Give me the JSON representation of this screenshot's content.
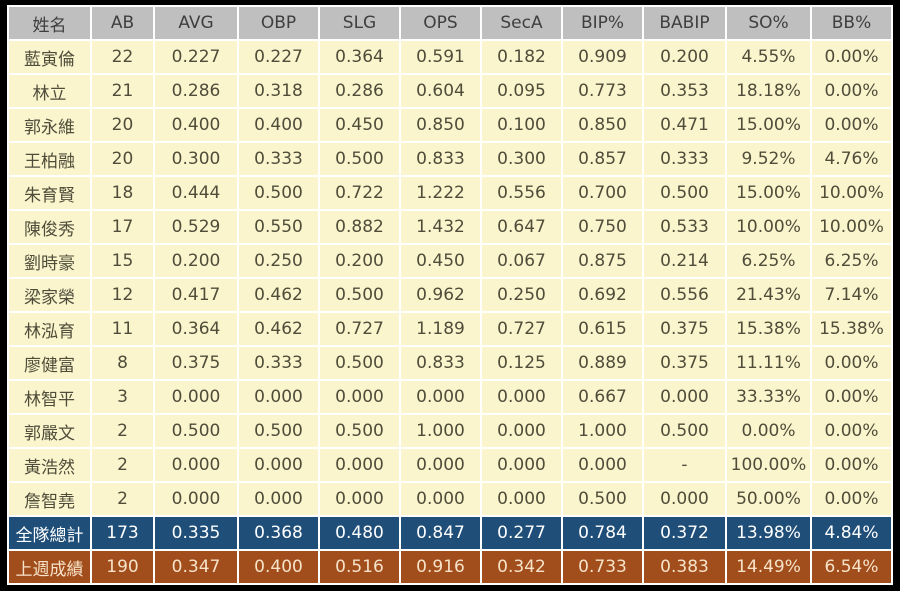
{
  "chart_data": {
    "type": "table",
    "columns": [
      "姓名",
      "AB",
      "AVG",
      "OBP",
      "SLG",
      "OPS",
      "SecA",
      "BIP%",
      "BABIP",
      "SO%",
      "BB%"
    ],
    "rows": [
      {
        "name": "藍寅倫",
        "values": [
          "22",
          "0.227",
          "0.227",
          "0.364",
          "0.591",
          "0.182",
          "0.909",
          "0.200",
          "4.55%",
          "0.00%"
        ]
      },
      {
        "name": "林立",
        "values": [
          "21",
          "0.286",
          "0.318",
          "0.286",
          "0.604",
          "0.095",
          "0.773",
          "0.353",
          "18.18%",
          "0.00%"
        ]
      },
      {
        "name": "郭永維",
        "values": [
          "20",
          "0.400",
          "0.400",
          "0.450",
          "0.850",
          "0.100",
          "0.850",
          "0.471",
          "15.00%",
          "0.00%"
        ]
      },
      {
        "name": "王柏融",
        "values": [
          "20",
          "0.300",
          "0.333",
          "0.500",
          "0.833",
          "0.300",
          "0.857",
          "0.333",
          "9.52%",
          "4.76%"
        ]
      },
      {
        "name": "朱育賢",
        "values": [
          "18",
          "0.444",
          "0.500",
          "0.722",
          "1.222",
          "0.556",
          "0.700",
          "0.500",
          "15.00%",
          "10.00%"
        ]
      },
      {
        "name": "陳俊秀",
        "values": [
          "17",
          "0.529",
          "0.550",
          "0.882",
          "1.432",
          "0.647",
          "0.750",
          "0.533",
          "10.00%",
          "10.00%"
        ]
      },
      {
        "name": "劉時豪",
        "values": [
          "15",
          "0.200",
          "0.250",
          "0.200",
          "0.450",
          "0.067",
          "0.875",
          "0.214",
          "6.25%",
          "6.25%"
        ]
      },
      {
        "name": "梁家榮",
        "values": [
          "12",
          "0.417",
          "0.462",
          "0.500",
          "0.962",
          "0.250",
          "0.692",
          "0.556",
          "21.43%",
          "7.14%"
        ]
      },
      {
        "name": "林泓育",
        "values": [
          "11",
          "0.364",
          "0.462",
          "0.727",
          "1.189",
          "0.727",
          "0.615",
          "0.375",
          "15.38%",
          "15.38%"
        ]
      },
      {
        "name": "廖健富",
        "values": [
          "8",
          "0.375",
          "0.333",
          "0.500",
          "0.833",
          "0.125",
          "0.889",
          "0.375",
          "11.11%",
          "0.00%"
        ]
      },
      {
        "name": "林智平",
        "values": [
          "3",
          "0.000",
          "0.000",
          "0.000",
          "0.000",
          "0.000",
          "0.667",
          "0.000",
          "33.33%",
          "0.00%"
        ]
      },
      {
        "name": "郭嚴文",
        "values": [
          "2",
          "0.500",
          "0.500",
          "0.500",
          "1.000",
          "0.000",
          "1.000",
          "0.500",
          "0.00%",
          "0.00%"
        ]
      },
      {
        "name": "黃浩然",
        "values": [
          "2",
          "0.000",
          "0.000",
          "0.000",
          "0.000",
          "0.000",
          "0.000",
          "-",
          "100.00%",
          "0.00%"
        ]
      },
      {
        "name": "詹智堯",
        "values": [
          "2",
          "0.000",
          "0.000",
          "0.000",
          "0.000",
          "0.000",
          "0.500",
          "0.000",
          "50.00%",
          "0.00%"
        ]
      }
    ],
    "summary_rows": [
      {
        "name": "全隊總計",
        "kind": "total",
        "values": [
          "173",
          "0.335",
          "0.368",
          "0.480",
          "0.847",
          "0.277",
          "0.784",
          "0.372",
          "13.98%",
          "4.84%"
        ]
      },
      {
        "name": "上週成績",
        "kind": "lastweek",
        "values": [
          "190",
          "0.347",
          "0.400",
          "0.516",
          "0.916",
          "0.342",
          "0.733",
          "0.383",
          "14.49%",
          "6.54%"
        ]
      }
    ],
    "title": "",
    "layout_hints": {
      "grid": "on",
      "header_position": "top"
    }
  },
  "colors": {
    "page_bg": "#000000",
    "grid": "#ffffff",
    "header_bg": "#bfbfbf",
    "header_text": "#3f3f3f",
    "row_bg": "#fbf5ce",
    "row_text": "#4f4d3a",
    "total_bg": "#1f4e79",
    "total_text": "#ffffff",
    "lastweek_bg": "#a24e1c",
    "lastweek_text": "#f6e3c9"
  }
}
